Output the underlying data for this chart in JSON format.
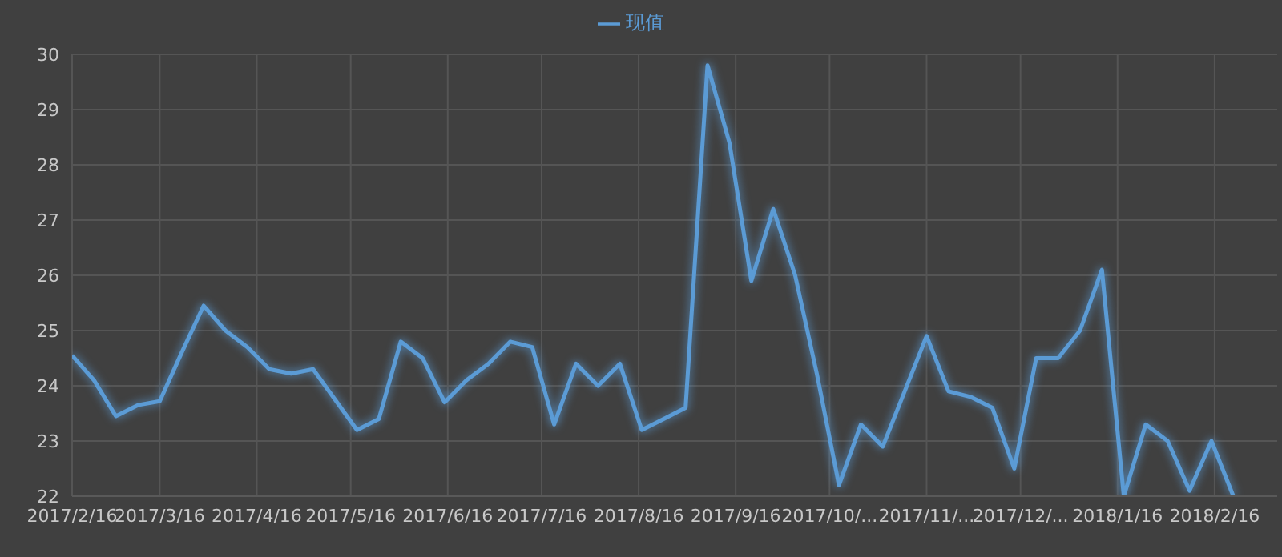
{
  "chart_data": {
    "type": "line",
    "x": [
      "2017-02-16",
      "2017-02-23",
      "2017-03-02",
      "2017-03-09",
      "2017-03-16",
      "2017-03-23",
      "2017-03-30",
      "2017-04-06",
      "2017-04-13",
      "2017-04-20",
      "2017-04-27",
      "2017-05-04",
      "2017-05-11",
      "2017-05-18",
      "2017-05-25",
      "2017-06-01",
      "2017-06-08",
      "2017-06-15",
      "2017-06-22",
      "2017-06-29",
      "2017-07-06",
      "2017-07-13",
      "2017-07-20",
      "2017-07-27",
      "2017-08-03",
      "2017-08-10",
      "2017-08-17",
      "2017-08-24",
      "2017-08-31",
      "2017-09-07",
      "2017-09-14",
      "2017-09-21",
      "2017-09-28",
      "2017-10-05",
      "2017-10-12",
      "2017-10-19",
      "2017-10-26",
      "2017-11-02",
      "2017-11-09",
      "2017-11-16",
      "2017-11-23",
      "2017-11-30",
      "2017-12-07",
      "2017-12-14",
      "2017-12-21",
      "2017-12-28",
      "2018-01-04",
      "2018-01-11",
      "2018-01-18",
      "2018-01-25",
      "2018-02-01",
      "2018-02-08",
      "2018-02-15",
      "2018-02-22"
    ],
    "series": [
      {
        "name": "现值",
        "color": "#5b9bd5",
        "values": [
          24.55,
          24.1,
          23.45,
          23.65,
          23.72,
          24.6,
          25.45,
          25.0,
          24.7,
          24.3,
          24.22,
          24.3,
          23.75,
          23.2,
          23.4,
          24.8,
          24.5,
          23.7,
          24.1,
          24.4,
          24.8,
          24.7,
          23.3,
          24.4,
          24.0,
          24.4,
          23.2,
          23.4,
          23.6,
          29.8,
          28.4,
          25.9,
          27.2,
          26.0,
          24.2,
          22.2,
          23.3,
          22.9,
          23.9,
          24.9,
          23.9,
          23.8,
          23.6,
          22.5,
          24.5,
          24.5,
          25.0,
          26.1,
          22.0,
          23.3,
          23.0,
          22.1,
          23.0,
          22.0
        ]
      }
    ],
    "xlim": [
      "2017-02-16",
      "2018-03-08"
    ],
    "xticks": [
      {
        "value": "2017-02-16",
        "label": "2017/2/16"
      },
      {
        "value": "2017-03-16",
        "label": "2017/3/16"
      },
      {
        "value": "2017-04-16",
        "label": "2017/4/16"
      },
      {
        "value": "2017-05-16",
        "label": "2017/5/16"
      },
      {
        "value": "2017-06-16",
        "label": "2017/6/16"
      },
      {
        "value": "2017-07-16",
        "label": "2017/7/16"
      },
      {
        "value": "2017-08-16",
        "label": "2017/8/16"
      },
      {
        "value": "2017-09-16",
        "label": "2017/9/16"
      },
      {
        "value": "2017-10-16",
        "label": "2017/10/..."
      },
      {
        "value": "2017-11-16",
        "label": "2017/11/..."
      },
      {
        "value": "2017-12-16",
        "label": "2017/12/..."
      },
      {
        "value": "2018-01-16",
        "label": "2018/1/16"
      },
      {
        "value": "2018-02-16",
        "label": "2018/2/16"
      }
    ],
    "ylim": [
      22,
      30
    ],
    "yticks": [
      22,
      23,
      24,
      25,
      26,
      27,
      28,
      29,
      30
    ],
    "grid": true,
    "legend": "top",
    "marker": "none",
    "line_style": "solid"
  }
}
